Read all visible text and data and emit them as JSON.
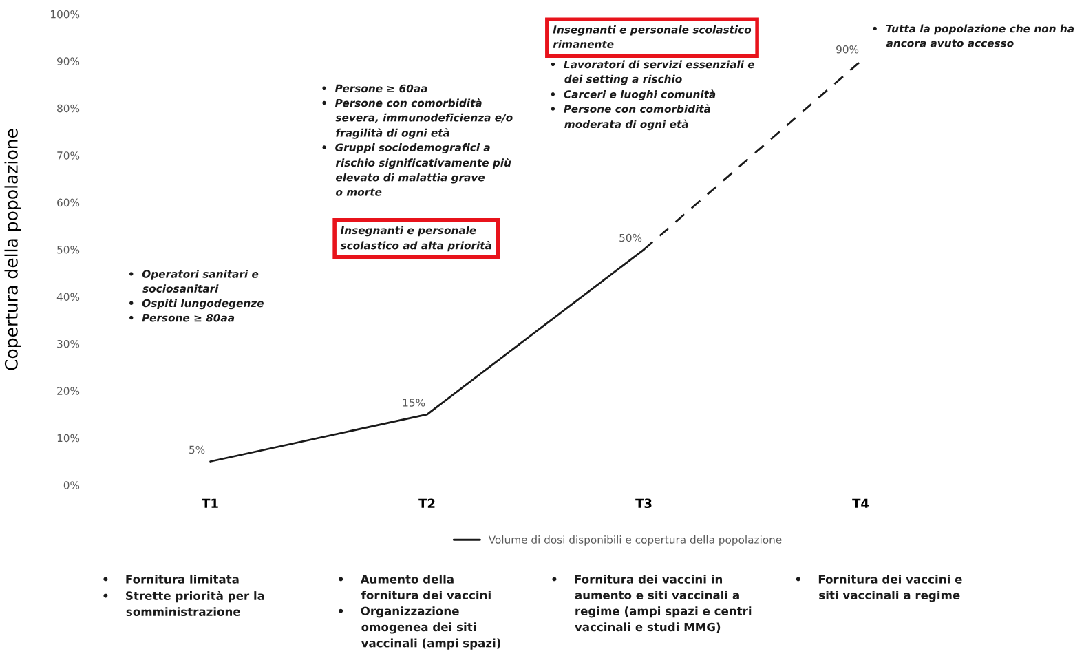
{
  "chart_data": {
    "type": "line",
    "ylabel": "Copertura della popolazione",
    "categories": [
      "T1",
      "T2",
      "T3",
      "T4"
    ],
    "ylim": [
      0,
      100
    ],
    "yticks": [
      {
        "value": 0,
        "label": "0%"
      },
      {
        "value": 10,
        "label": "10%"
      },
      {
        "value": 20,
        "label": "20%"
      },
      {
        "value": 30,
        "label": "30%"
      },
      {
        "value": 40,
        "label": "40%"
      },
      {
        "value": 50,
        "label": "50%"
      },
      {
        "value": 60,
        "label": "60%"
      },
      {
        "value": 70,
        "label": "70%"
      },
      {
        "value": 80,
        "label": "80%"
      },
      {
        "value": 90,
        "label": "90%"
      },
      {
        "value": 100,
        "label": "100%"
      }
    ],
    "series": [
      {
        "name": "Volume di dosi disponibili e copertura della popolazione",
        "color": "#1a1a1a",
        "values": [
          5,
          15,
          50,
          null
        ],
        "value_labels": [
          "5%",
          "15%",
          "50%",
          null
        ],
        "line_style": "solid"
      },
      {
        "color": "#1a1a1a",
        "values": [
          null,
          null,
          50,
          90
        ],
        "value_labels": [
          null,
          null,
          null,
          "90%"
        ],
        "line_style": "dashed"
      }
    ],
    "marker": "none",
    "grid": false,
    "legend": "bottom",
    "annotations": [
      "•  Operatori sanitari e\n    sociosanitari\n•  Ospiti lungodegenze\n•  Persone ≥ 80aa",
      "•  Persone ≥ 60aa\n•  Persone con comorbidità\n    severa, immunodeficienza e/o\n    fragilità di ogni età\n•  Gruppi sociodemografici a\n    rischio significativamente più\n    elevato di malattia grave\n    o morte",
      "Insegnanti e personale\nscolastico ad alta priorità",
      "Insegnanti e personale scolastico\nrimanente",
      "•  Lavoratori di servizi essenziali e\n    dei setting a rischio\n•  Carceri e luoghi comunità\n•  Persone con comorbidità\n    moderata di ogni età",
      "•  Tutta la popolazione che non ha\n    ancora avuto accesso",
      "•    Fornitura limitata\n•    Strette priorità per la\n      somministrazione",
      "•    Aumento della\n      fornitura dei vaccini\n•    Organizzazione\n      omogenea dei siti\n      vaccinali (ampi spazi)",
      "•    Fornitura dei vaccini in\n      aumento e siti vaccinali a\n      regime (ampi spazi e centri\n      vaccinali e studi MMG)",
      "•    Fornitura dei vaccini e\n      siti vaccinali a regime"
    ]
  }
}
